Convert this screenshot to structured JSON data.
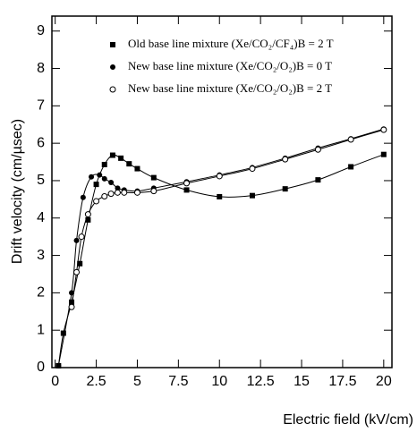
{
  "chart_data": {
    "type": "line",
    "xlabel": "Electric field (kV/cm)",
    "ylabel": "Drift velocity (cm/µsec)",
    "xlim": [
      -0.2,
      20.5
    ],
    "ylim": [
      0,
      9.4
    ],
    "xticks": [
      0,
      2.5,
      5,
      7.5,
      10,
      12.5,
      15,
      17.5,
      20
    ],
    "yticks": [
      0,
      1,
      2,
      3,
      4,
      5,
      6,
      7,
      8,
      9
    ],
    "series": [
      {
        "name": "Old base line mixture (Xe/CO₂/CF₄)B = 2 T",
        "color": "#000000",
        "marker": "square",
        "x": [
          0.2,
          0.5,
          1.0,
          1.5,
          2.0,
          2.5,
          3.0,
          3.5,
          4.0,
          4.5,
          5.0,
          6.0,
          8.0,
          10.0,
          12.0,
          14.0,
          16.0,
          18.0,
          20.0
        ],
        "values": [
          0.05,
          0.92,
          1.75,
          2.78,
          3.95,
          4.9,
          5.43,
          5.68,
          5.6,
          5.45,
          5.32,
          5.08,
          4.75,
          4.57,
          4.6,
          4.78,
          5.02,
          5.37,
          5.7
        ]
      },
      {
        "name": "New base line mixture (Xe/CO₂/O₂)B = 0 T",
        "color": "#000000",
        "marker": "circle",
        "x": [
          0.2,
          1.0,
          1.3,
          1.7,
          2.2,
          2.7,
          3.0,
          3.4,
          3.8,
          4.2,
          5.0,
          6.0,
          8.0,
          10.0,
          12.0,
          14.0,
          16.0,
          18.0,
          20.0
        ],
        "values": [
          0.05,
          2.0,
          3.4,
          4.55,
          5.1,
          5.15,
          5.05,
          4.95,
          4.8,
          4.75,
          4.72,
          4.8,
          4.97,
          5.15,
          5.35,
          5.6,
          5.87,
          6.12,
          6.38
        ]
      },
      {
        "name": "New base line mixture (Xe/CO₂/O₂)B = 2 T",
        "color": "#000000",
        "marker": "open-circle",
        "x": [
          1.0,
          1.3,
          1.6,
          2.0,
          2.5,
          3.0,
          3.4,
          3.8,
          4.2,
          5.0,
          6.0,
          8.0,
          10.0,
          12.0,
          14.0,
          16.0,
          18.0,
          20.0
        ],
        "values": [
          1.62,
          2.55,
          3.5,
          4.1,
          4.45,
          4.58,
          4.65,
          4.68,
          4.68,
          4.68,
          4.72,
          4.93,
          5.12,
          5.32,
          5.57,
          5.83,
          6.1,
          6.36
        ]
      }
    ]
  }
}
